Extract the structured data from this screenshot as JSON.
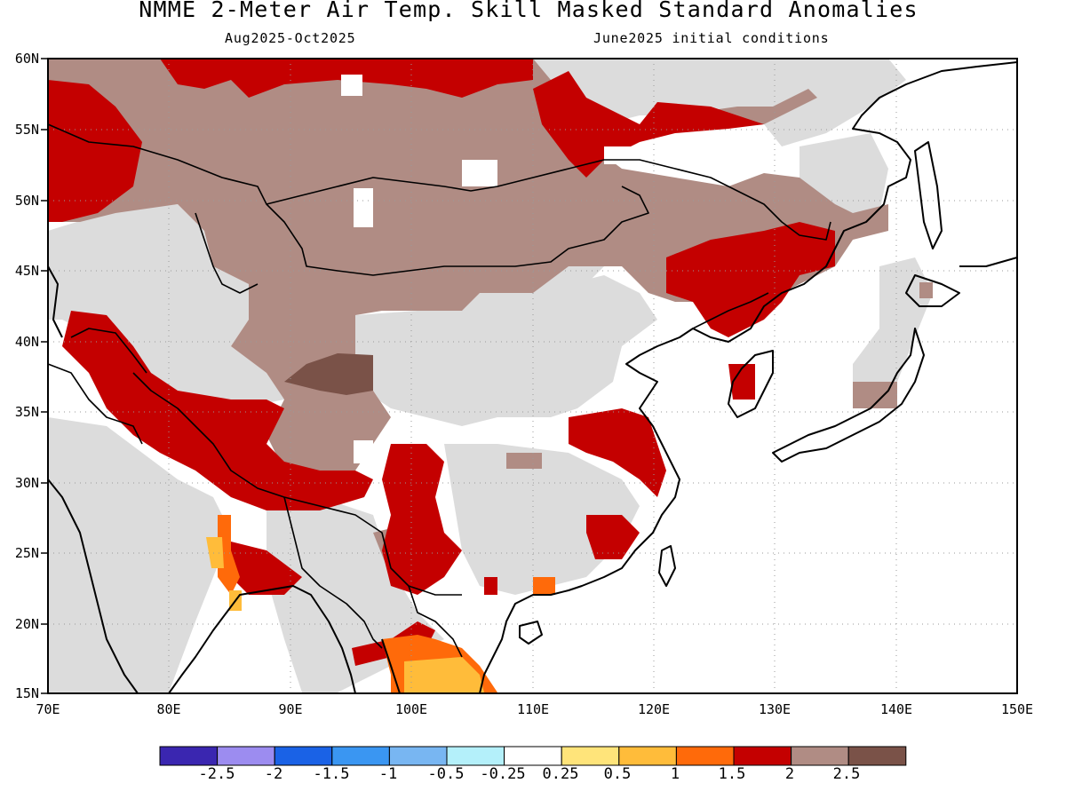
{
  "header": {
    "title": "NMME 2-Meter Air Temp. Skill Masked Standard Anomalies",
    "valid_period": "Aug2025-Oct2025",
    "initial_conditions": "June2025 initial conditions"
  },
  "map": {
    "lat_labels": [
      "60N",
      "55N",
      "50N",
      "45N",
      "40N",
      "35N",
      "30N",
      "25N",
      "20N",
      "15N"
    ],
    "lon_labels": [
      "70E",
      "80E",
      "90E",
      "100E",
      "110E",
      "120E",
      "130E",
      "140E",
      "150E"
    ],
    "colors": {
      "no_skill_gray": "#dcdcdc",
      "coastline": "#000000",
      "gridline": "#9a9a9a"
    }
  },
  "colorbar": {
    "colors": [
      "#3a26b0",
      "#9c8cf0",
      "#1a62e6",
      "#3a96f2",
      "#78b6f2",
      "#b4f0fa",
      "#ffffff",
      "#ffe47a",
      "#ffbc3a",
      "#ff6a0a",
      "#c40000",
      "#b08c84",
      "#7a5248"
    ],
    "tick_labels": [
      "-2.5",
      "-2",
      "-1.5",
      "-1",
      "-0.5",
      "-0.25",
      "0.25",
      "0.5",
      "1",
      "1.5",
      "2",
      "2.5"
    ]
  }
}
